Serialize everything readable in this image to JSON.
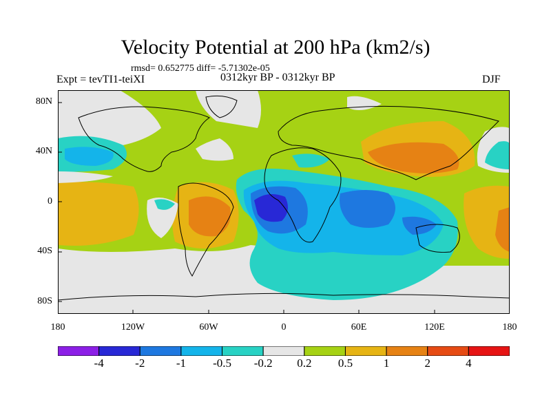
{
  "title": "Velocity Potential at 200 hPa (km2/s)",
  "stats": "rmsd= 0.652775 diff= -5.71302e-05",
  "experiment": "Expt = tevTI1-teiXI",
  "period": "0312kyr BP - 0312kyr BP",
  "season": "DJF",
  "lat_labels": [
    "80N",
    "40N",
    "0",
    "40S",
    "80S"
  ],
  "lon_labels": [
    "180",
    "120W",
    "60W",
    "0",
    "60E",
    "120E",
    "180"
  ],
  "colorbar": {
    "labels": [
      "-4",
      "-2",
      "-1",
      "-0.5",
      "-0.2",
      "0.2",
      "0.5",
      "1",
      "2",
      "4"
    ],
    "colors": [
      "#8c1fe6",
      "#2828d6",
      "#1e78e0",
      "#14b4ea",
      "#28d2c4",
      "#e6e6e6",
      "#a6d214",
      "#e6b414",
      "#e68214",
      "#e64b14",
      "#e61414"
    ]
  },
  "colors": {
    "land_outline": "#000000",
    "neutral": "#e6e6e6"
  }
}
